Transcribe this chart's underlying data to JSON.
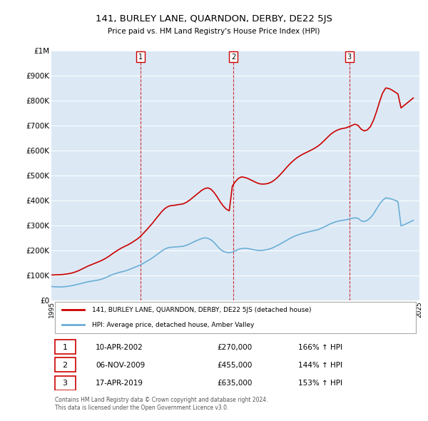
{
  "title": "141, BURLEY LANE, QUARNDON, DERBY, DE22 5JS",
  "subtitle": "Price paid vs. HM Land Registry's House Price Index (HPI)",
  "background_color": "#dce9f5",
  "plot_bg_color": "#dce9f5",
  "hpi_line_color": "#6baed6",
  "price_line_color": "#cc0000",
  "vline_color": "#cc0000",
  "vline_style": "dashed",
  "ylim": [
    0,
    1000000
  ],
  "yticks": [
    0,
    100000,
    200000,
    300000,
    400000,
    500000,
    600000,
    700000,
    800000,
    900000,
    1000000
  ],
  "ytick_labels": [
    "£0",
    "£100K",
    "£200K",
    "£300K",
    "£400K",
    "£500K",
    "£600K",
    "£700K",
    "£800K",
    "£900K",
    "£1M"
  ],
  "x_start_year": 1995,
  "x_end_year": 2025,
  "sales": [
    {
      "year": 2002.27,
      "price": 270000,
      "label": "1"
    },
    {
      "year": 2009.84,
      "price": 455000,
      "label": "2"
    },
    {
      "year": 2019.29,
      "price": 635000,
      "label": "3"
    }
  ],
  "legend_entries": [
    "141, BURLEY LANE, QUARNDON, DERBY, DE22 5JS (detached house)",
    "HPI: Average price, detached house, Amber Valley"
  ],
  "table_rows": [
    {
      "num": "1",
      "date": "10-APR-2002",
      "price": "£270,000",
      "pct": "166% ↑ HPI"
    },
    {
      "num": "2",
      "date": "06-NOV-2009",
      "price": "£455,000",
      "pct": "144% ↑ HPI"
    },
    {
      "num": "3",
      "date": "17-APR-2019",
      "price": "£635,000",
      "pct": "153% ↑ HPI"
    }
  ],
  "footer": "Contains HM Land Registry data © Crown copyright and database right 2024.\nThis data is licensed under the Open Government Licence v3.0.",
  "hpi_data": {
    "years": [
      1995.0,
      1995.25,
      1995.5,
      1995.75,
      1996.0,
      1996.25,
      1996.5,
      1996.75,
      1997.0,
      1997.25,
      1997.5,
      1997.75,
      1998.0,
      1998.25,
      1998.5,
      1998.75,
      1999.0,
      1999.25,
      1999.5,
      1999.75,
      2000.0,
      2000.25,
      2000.5,
      2000.75,
      2001.0,
      2001.25,
      2001.5,
      2001.75,
      2002.0,
      2002.25,
      2002.5,
      2002.75,
      2003.0,
      2003.25,
      2003.5,
      2003.75,
      2004.0,
      2004.25,
      2004.5,
      2004.75,
      2005.0,
      2005.25,
      2005.5,
      2005.75,
      2006.0,
      2006.25,
      2006.5,
      2006.75,
      2007.0,
      2007.25,
      2007.5,
      2007.75,
      2008.0,
      2008.25,
      2008.5,
      2008.75,
      2009.0,
      2009.25,
      2009.5,
      2009.75,
      2010.0,
      2010.25,
      2010.5,
      2010.75,
      2011.0,
      2011.25,
      2011.5,
      2011.75,
      2012.0,
      2012.25,
      2012.5,
      2012.75,
      2013.0,
      2013.25,
      2013.5,
      2013.75,
      2014.0,
      2014.25,
      2014.5,
      2014.75,
      2015.0,
      2015.25,
      2015.5,
      2015.75,
      2016.0,
      2016.25,
      2016.5,
      2016.75,
      2017.0,
      2017.25,
      2017.5,
      2017.75,
      2018.0,
      2018.25,
      2018.5,
      2018.75,
      2019.0,
      2019.25,
      2019.5,
      2019.75,
      2020.0,
      2020.25,
      2020.5,
      2020.75,
      2021.0,
      2021.25,
      2021.5,
      2021.75,
      2022.0,
      2022.25,
      2022.5,
      2022.75,
      2023.0,
      2023.25,
      2023.5,
      2023.75,
      2024.0,
      2024.25,
      2024.5
    ],
    "values": [
      55000,
      54000,
      53500,
      53000,
      54000,
      55000,
      57000,
      59000,
      62000,
      65000,
      68000,
      71000,
      74000,
      76000,
      78000,
      80000,
      83000,
      87000,
      92000,
      98000,
      103000,
      107000,
      111000,
      114000,
      117000,
      121000,
      126000,
      131000,
      136000,
      141000,
      148000,
      155000,
      162000,
      170000,
      179000,
      188000,
      197000,
      205000,
      210000,
      212000,
      213000,
      214000,
      215000,
      216000,
      220000,
      225000,
      231000,
      237000,
      242000,
      247000,
      250000,
      248000,
      242000,
      232000,
      218000,
      205000,
      196000,
      192000,
      190000,
      193000,
      198000,
      204000,
      207000,
      208000,
      207000,
      205000,
      202000,
      200000,
      199000,
      200000,
      202000,
      205000,
      209000,
      215000,
      221000,
      228000,
      235000,
      242000,
      249000,
      255000,
      260000,
      264000,
      268000,
      271000,
      274000,
      277000,
      280000,
      283000,
      288000,
      294000,
      300000,
      306000,
      311000,
      315000,
      318000,
      320000,
      322000,
      325000,
      328000,
      330000,
      328000,
      318000,
      315000,
      320000,
      330000,
      345000,
      365000,
      385000,
      400000,
      410000,
      408000,
      405000,
      400000,
      395000,
      298000,
      302000,
      308000,
      314000,
      320000
    ]
  },
  "price_data": {
    "years": [
      1995.0,
      1995.25,
      1995.5,
      1995.75,
      1996.0,
      1996.25,
      1996.5,
      1996.75,
      1997.0,
      1997.25,
      1997.5,
      1997.75,
      1998.0,
      1998.25,
      1998.5,
      1998.75,
      1999.0,
      1999.25,
      1999.5,
      1999.75,
      2000.0,
      2000.25,
      2000.5,
      2000.75,
      2001.0,
      2001.25,
      2001.5,
      2001.75,
      2002.0,
      2002.25,
      2002.5,
      2002.75,
      2003.0,
      2003.25,
      2003.5,
      2003.75,
      2004.0,
      2004.25,
      2004.5,
      2004.75,
      2005.0,
      2005.25,
      2005.5,
      2005.75,
      2006.0,
      2006.25,
      2006.5,
      2006.75,
      2007.0,
      2007.25,
      2007.5,
      2007.75,
      2008.0,
      2008.25,
      2008.5,
      2008.75,
      2009.0,
      2009.25,
      2009.5,
      2009.75,
      2010.0,
      2010.25,
      2010.5,
      2010.75,
      2011.0,
      2011.25,
      2011.5,
      2011.75,
      2012.0,
      2012.25,
      2012.5,
      2012.75,
      2013.0,
      2013.25,
      2013.5,
      2013.75,
      2014.0,
      2014.25,
      2014.5,
      2014.75,
      2015.0,
      2015.25,
      2015.5,
      2015.75,
      2016.0,
      2016.25,
      2016.5,
      2016.75,
      2017.0,
      2017.25,
      2017.5,
      2017.75,
      2018.0,
      2018.25,
      2018.5,
      2018.75,
      2019.0,
      2019.25,
      2019.5,
      2019.75,
      2020.0,
      2020.25,
      2020.5,
      2020.75,
      2021.0,
      2021.25,
      2021.5,
      2021.75,
      2022.0,
      2022.25,
      2022.5,
      2022.75,
      2023.0,
      2023.25,
      2023.5,
      2023.75,
      2024.0,
      2024.25,
      2024.5
    ],
    "values": [
      101000,
      101500,
      102000,
      102500,
      103500,
      105000,
      107000,
      110000,
      114000,
      119000,
      125000,
      131000,
      137000,
      142000,
      147000,
      152000,
      157000,
      163000,
      170000,
      178000,
      187000,
      195000,
      203000,
      210000,
      216000,
      222000,
      229000,
      237000,
      245000,
      255000,
      268000,
      281000,
      295000,
      309000,
      325000,
      340000,
      355000,
      367000,
      375000,
      379000,
      380000,
      382000,
      384000,
      386000,
      392000,
      400000,
      410000,
      420000,
      430000,
      440000,
      447000,
      450000,
      445000,
      432000,
      415000,
      395000,
      378000,
      365000,
      358000,
      457000,
      475000,
      488000,
      494000,
      492000,
      488000,
      482000,
      476000,
      470000,
      466000,
      465000,
      466000,
      469000,
      475000,
      484000,
      495000,
      508000,
      522000,
      536000,
      549000,
      560000,
      570000,
      578000,
      585000,
      591000,
      597000,
      603000,
      610000,
      618000,
      628000,
      640000,
      652000,
      664000,
      673000,
      680000,
      685000,
      688000,
      690000,
      695000,
      700000,
      705000,
      700000,
      685000,
      678000,
      682000,
      695000,
      720000,
      755000,
      795000,
      830000,
      850000,
      848000,
      842000,
      834000,
      826000,
      770000,
      780000,
      790000,
      800000,
      810000
    ]
  }
}
